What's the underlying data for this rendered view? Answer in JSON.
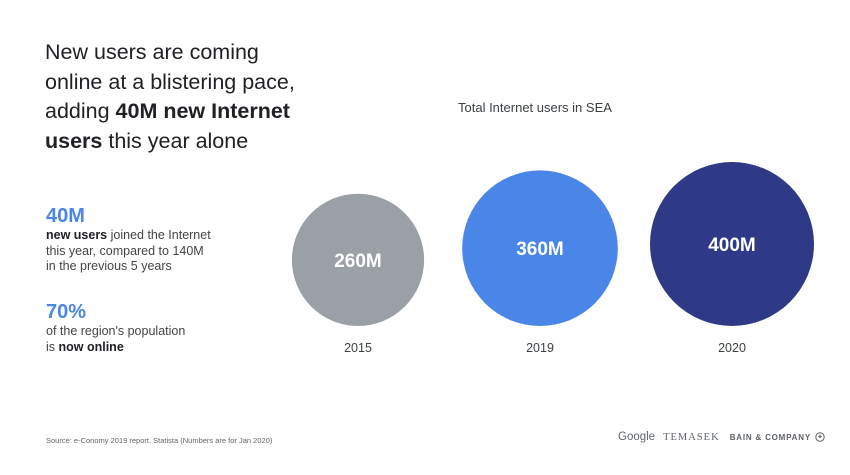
{
  "headline": {
    "line1": "New users are coming",
    "line2": "online at a blistering pace,",
    "line3_pre": "adding ",
    "line3_bold": "40M new Internet",
    "line4_bold": "users",
    "line4_post": " this year alone"
  },
  "stats": [
    {
      "value": "40M",
      "bold": "new users",
      "line1_post": " joined the Internet",
      "line2": "this year, compared to 140M",
      "line3": "in the previous 5 years"
    },
    {
      "value": "70%",
      "line1": "of the region's population",
      "line2_pre": "is ",
      "line2_bold": "now online"
    }
  ],
  "chart_data": {
    "type": "bubble",
    "title": "Total Internet users in SEA",
    "categories": [
      "2015",
      "2019",
      "2020"
    ],
    "values": [
      260,
      360,
      400
    ],
    "labels": [
      "260M",
      "360M",
      "400M"
    ],
    "unit": "M",
    "colors": [
      "#9aa0a6",
      "#4a86e8",
      "#2e3a87"
    ]
  },
  "footer": {
    "source": "Source: e-Conomy 2019 report, Statista (Numbers are for Jan 2020)",
    "logo_google": "Google",
    "logo_temasek": "TEMASEK",
    "logo_bain": "BAIN & COMPANY"
  },
  "icons": {
    "bain": "bain-logo-icon"
  }
}
